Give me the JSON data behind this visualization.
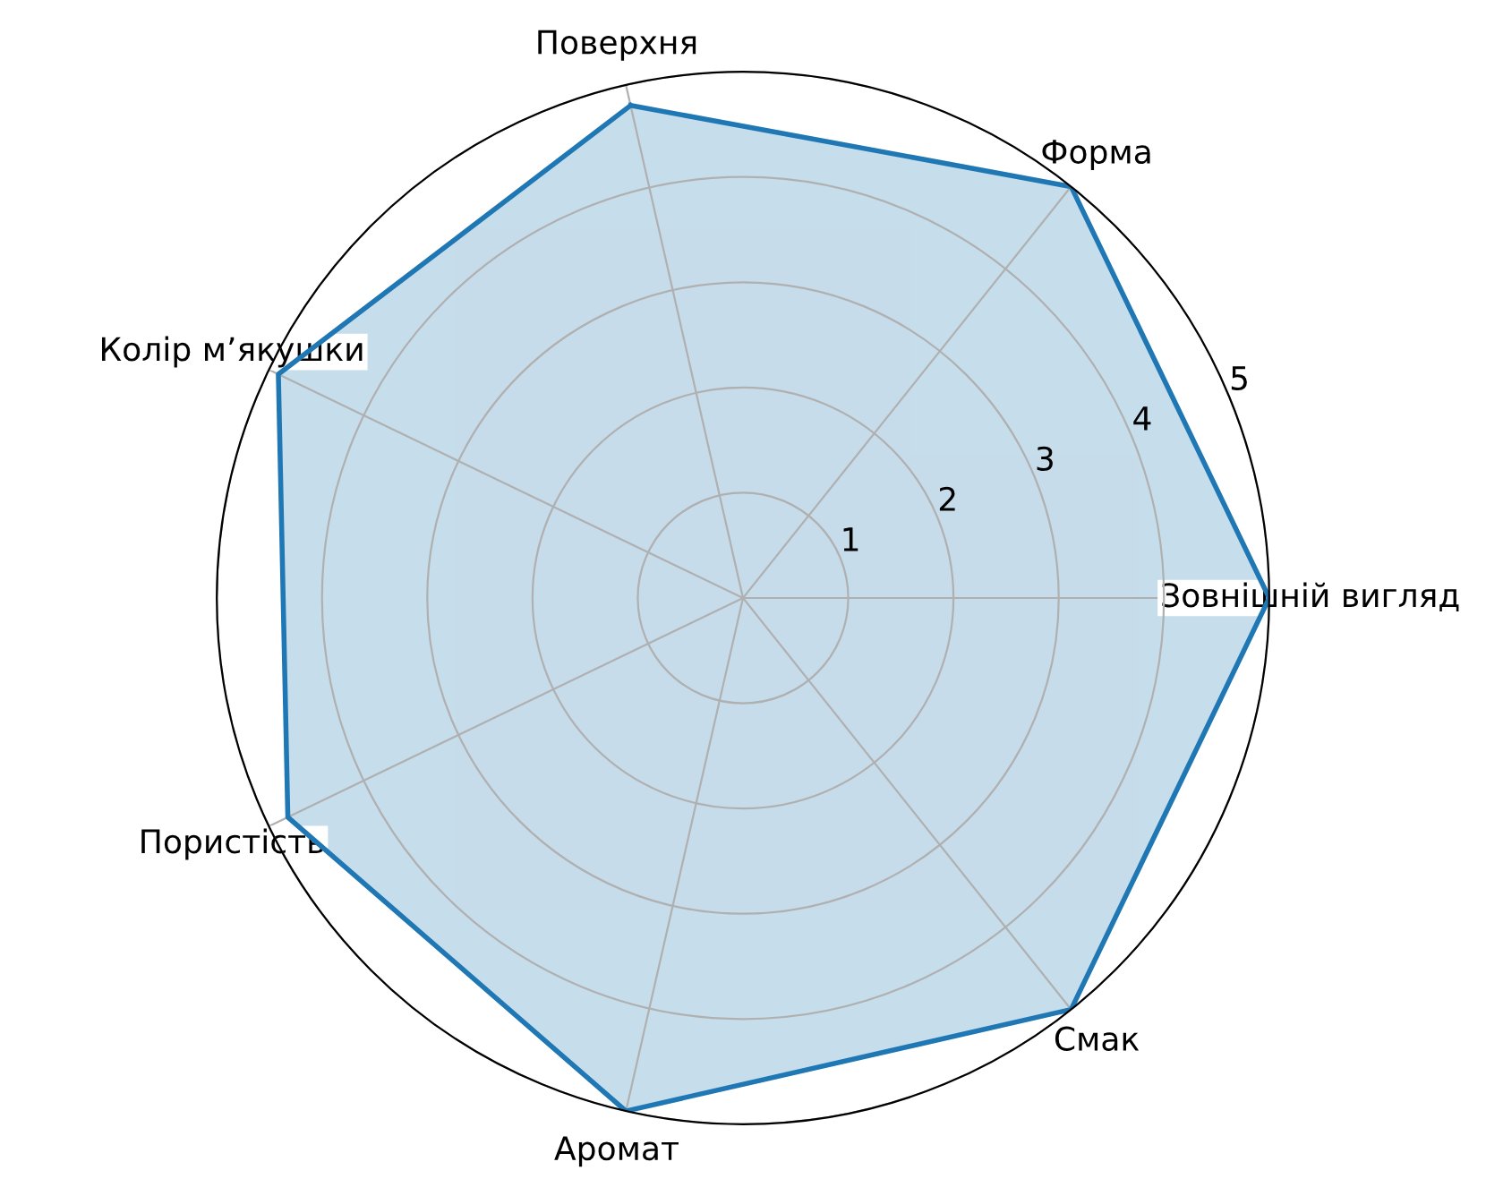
{
  "chart_data": {
    "type": "radar",
    "categories": [
      "Поверхня",
      "Форма",
      "Зовнішній вигляд",
      "Смак",
      "Аромат",
      "Пористість",
      "Колір м’якушки"
    ],
    "series": [
      {
        "color": "#1f77b4",
        "values": [
          4.8,
          5,
          5,
          5,
          5,
          4.8,
          4.9
        ]
      }
    ],
    "ylim": [
      0,
      5
    ],
    "yticks": [
      1,
      2,
      3,
      4,
      5
    ],
    "grid": true
  }
}
